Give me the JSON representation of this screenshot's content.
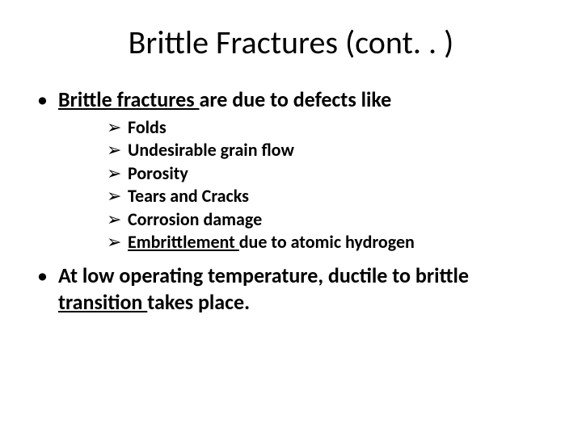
{
  "background_color": "#ffffff",
  "text_color": "#000000",
  "font_family": "Calibri",
  "title": {
    "text": "Brittle Fractures (cont. . )",
    "font_size_pt": 40,
    "font_weight": 400,
    "align": "center"
  },
  "bullets": {
    "level1_font_size_pt": 26,
    "level1_font_weight": 700,
    "level1_marker": "•",
    "level2_font_size_pt": 22,
    "level2_font_weight": 700,
    "level2_marker": "➢",
    "items": [
      {
        "pre_underline": " ",
        "underline": "Brittle fractures ",
        "post_underline": "are due to defects like",
        "sub": [
          "Folds",
          "Undesirable grain flow",
          "Porosity",
          "Tears and Cracks",
          "Corrosion damage"
        ],
        "sub_special": {
          "underline": "Embrittlement ",
          "rest": "due to atomic hydrogen"
        }
      },
      {
        "pre_underline": " At low operating temperature, ductile to brittle ",
        "underline": "transition ",
        "post_underline": "takes place."
      }
    ]
  }
}
